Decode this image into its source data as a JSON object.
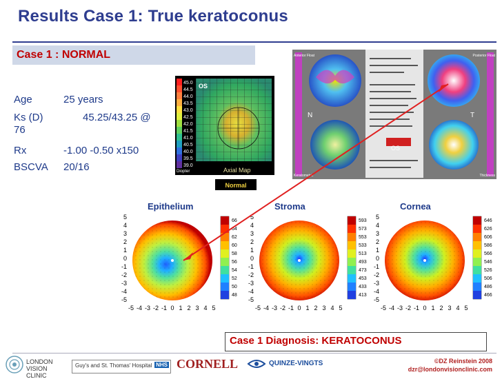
{
  "title": "Results Case 1: True keratoconus",
  "case_banner": "Case 1 : NORMAL",
  "patient_info": {
    "age_label": "Age",
    "age_value": "25 years",
    "ks_label": "Ks (D)",
    "ks_value": "45.25/43.25 @",
    "ks_value_wrap": "76",
    "rx_label": "Rx",
    "rx_value": "-1.00 -0.50 x150",
    "bscva_label": "BSCVA",
    "bscva_value": "20/16"
  },
  "axial_map": {
    "eye_label": "OS",
    "unit_label": "Diopter",
    "map_label": "Axial Map",
    "status_label": "Normal",
    "scale_values": [
      "45.0",
      "44.5",
      "44.0",
      "43.5",
      "43.0",
      "42.5",
      "42.0",
      "41.5",
      "41.0",
      "40.5",
      "40.0",
      "39.5",
      "39.0"
    ]
  },
  "orbscan": {
    "anterior_label": "Anterior Float",
    "posterior_label": "Posterior Float",
    "keratometric_label": "Keratometric",
    "thickness_label": "Thickness",
    "nasal_label": "N",
    "temporal_label": "T",
    "eye_label": "OS"
  },
  "columns": {
    "epithelium": "Epithelium",
    "stroma": "Stroma",
    "cornea": "Cornea"
  },
  "epithelium_map": {
    "scale": [
      "66",
      "64",
      "62",
      "60",
      "58",
      "56",
      "54",
      "52",
      "50",
      "48"
    ],
    "y_ticks": [
      "5",
      "4",
      "3",
      "2",
      "1",
      "0",
      "-1",
      "-2",
      "-3",
      "-4",
      "-5"
    ],
    "x_ticks": [
      "-5",
      "-4",
      "-3",
      "-2",
      "-1",
      "0",
      "1",
      "2",
      "3",
      "4",
      "5"
    ]
  },
  "stroma_map": {
    "scale": [
      "593",
      "573",
      "553",
      "533",
      "513",
      "493",
      "473",
      "453",
      "433",
      "413"
    ],
    "y_ticks": [
      "5",
      "4",
      "3",
      "2",
      "1",
      "0",
      "-1",
      "-2",
      "-3",
      "-4",
      "-5"
    ],
    "x_ticks": [
      "-5",
      "-4",
      "-3",
      "-2",
      "-1",
      "0",
      "1",
      "2",
      "3",
      "4",
      "5"
    ]
  },
  "cornea_map": {
    "scale": [
      "646",
      "626",
      "606",
      "586",
      "566",
      "546",
      "526",
      "506",
      "486",
      "466"
    ],
    "y_ticks": [
      "5",
      "4",
      "3",
      "2",
      "1",
      "0",
      "-1",
      "-2",
      "-3",
      "-4",
      "-5"
    ],
    "x_ticks": [
      "-5",
      "-4",
      "-3",
      "-2",
      "-1",
      "0",
      "1",
      "2",
      "3",
      "4",
      "5"
    ]
  },
  "diagnosis": "Case 1 Diagnosis: KERATOCONUS",
  "footer": {
    "logo1": "LONDON VISION CLINIC",
    "logo2": "Guy's and St. Thomas' Hospital",
    "logo2_badge": "NHS",
    "logo3": "CORNELL",
    "logo4": "QUINZE-VINGTS",
    "copyright": "©DZ Reinstein 2008",
    "email": "dzr@londonvisionclinic.com"
  },
  "colors": {
    "title": "#2e3d8f",
    "accent_red": "#c00000",
    "banner_bg": "#cfd8e8"
  }
}
